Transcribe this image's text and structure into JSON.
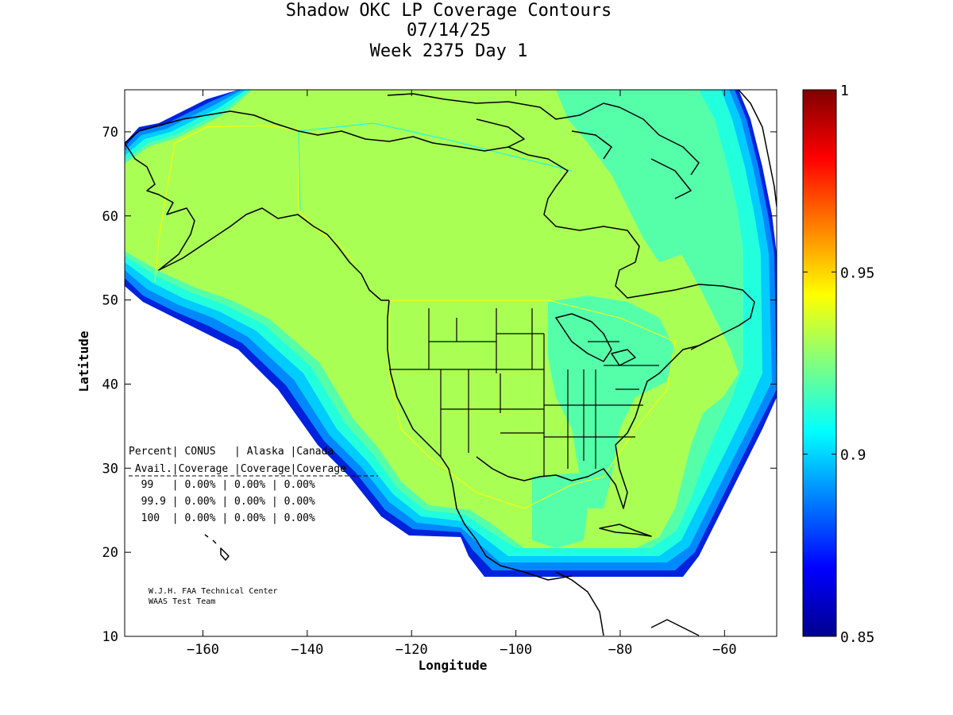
{
  "title": {
    "line1": "Shadow OKC LP Coverage Contours",
    "line2": "07/14/25",
    "line3": "Week 2375 Day 1"
  },
  "axes": {
    "xlabel": "Longitude",
    "ylabel": "Latitude",
    "xlim": [
      -175,
      -50
    ],
    "ylim": [
      10,
      75
    ],
    "xticks": [
      -160,
      -140,
      -120,
      -100,
      -80,
      -60
    ],
    "yticks": [
      10,
      20,
      30,
      40,
      50,
      60,
      70
    ]
  },
  "colorbar": {
    "min": 0.85,
    "max": 1,
    "ticks": [
      "1",
      "0.95",
      "0.9",
      "0.85"
    ],
    "colormap": "jet"
  },
  "table": {
    "header1": "Percent| CONUS   | Alaska |Canada",
    "header2": " Avail.|Coverage |Coverage|Coverage",
    "rows": [
      "  99   | 0.00% | 0.00% | 0.00%",
      "  99.9 | 0.00% | 0.00% | 0.00%",
      "  100  | 0.00% | 0.00% | 0.00%"
    ]
  },
  "credit": {
    "line1": "W.J.H. FAA Technical Center",
    "line2": "WAAS Test Team"
  },
  "colors": {
    "coverage_main": "#aaff55",
    "coverage_green": "#55ffaa",
    "coverage_cyan": "#22ffdd",
    "coverage_lightblue": "#00ccff",
    "coverage_blue": "#0088ff",
    "coverage_darkblue": "#0022dd"
  }
}
